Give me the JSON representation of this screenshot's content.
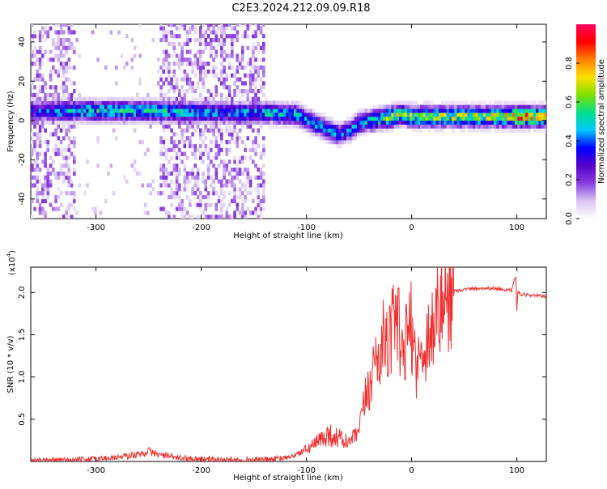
{
  "title": "C2E3.2024.212.09.09.R18",
  "chart_data": [
    {
      "type": "heatmap",
      "xlabel": "Height of straight line (km)",
      "ylabel": "Frequency (Hz)",
      "xlim": [
        -362,
        128
      ],
      "ylim": [
        -50,
        49
      ],
      "xticks": [
        -300,
        -200,
        -100,
        0,
        100
      ],
      "yticks": [
        -40,
        -20,
        0,
        20,
        40
      ],
      "ytick_labels": [
        "-40",
        "-20",
        "0",
        "20",
        "40"
      ],
      "colorbar": {
        "label": "Normalized spectral amplitude",
        "range": [
          0,
          1
        ],
        "ticks": [
          0.0,
          0.2,
          0.4,
          0.6,
          0.8
        ],
        "tick_labels": [
          "0.0",
          "0.2",
          "0.4",
          "0.6",
          "0.8"
        ],
        "colors": [
          "#ffffff",
          "#d9c4f2",
          "#8a3fe0",
          "#5500c8",
          "#0000ff",
          "#00c8ff",
          "#00e08c",
          "#7fe000",
          "#ffe000",
          "#ff8000",
          "#ff0000",
          "#ff0060"
        ]
      },
      "ridge": {
        "x": [
          -355,
          -330,
          -300,
          -260,
          -220,
          -180,
          -140,
          -110,
          -95,
          -80,
          -70,
          -60,
          -50,
          -40,
          -30,
          -20,
          -10,
          0,
          20,
          50,
          80,
          100,
          128
        ],
        "freq": [
          4,
          4,
          4,
          4,
          3.5,
          3,
          3,
          2,
          -2,
          -6,
          -8,
          -6,
          -2,
          -1,
          0,
          1,
          2,
          1,
          1,
          1,
          1,
          1,
          1
        ],
        "amp": [
          0.35,
          0.45,
          0.5,
          0.5,
          0.45,
          0.4,
          0.45,
          0.45,
          0.45,
          0.45,
          0.4,
          0.4,
          0.45,
          0.5,
          0.55,
          0.65,
          0.6,
          0.6,
          0.6,
          0.62,
          0.65,
          0.8,
          0.7
        ]
      }
    },
    {
      "type": "line",
      "xlabel": "Height of straight line (km)",
      "ylabel": "SNR (10 * v/v)",
      "scale_label_base": "(x10",
      "scale_label_exp": "4",
      "scale_label_close": ")",
      "xlim": [
        -362,
        128
      ],
      "ylim": [
        0,
        2.3
      ],
      "xticks": [
        -300,
        -200,
        -100,
        0,
        100
      ],
      "yticks": [
        0.5,
        1.0,
        1.5,
        2.0
      ],
      "ytick_labels": [
        "0.5",
        "1.0",
        "1.5",
        "2.0"
      ],
      "color": "#f03030",
      "series": [
        {
          "x": [
            -362,
            -340,
            -320,
            -300,
            -280,
            -260,
            -250,
            -240,
            -220,
            -200,
            -180,
            -160,
            -140,
            -120,
            -110,
            -100,
            -90,
            -80,
            -70,
            -60,
            -50,
            -45,
            -40,
            -35,
            -30,
            -25,
            -20,
            -18,
            -15,
            -12,
            -10,
            -5,
            0,
            5,
            10,
            20,
            30,
            40,
            60,
            80,
            95,
            99,
            100,
            101,
            105,
            115,
            128
          ],
          "values": [
            0.01,
            0.01,
            0.02,
            0.03,
            0.05,
            0.08,
            0.12,
            0.08,
            0.04,
            0.03,
            0.02,
            0.02,
            0.02,
            0.04,
            0.08,
            0.14,
            0.22,
            0.32,
            0.28,
            0.22,
            0.35,
            0.7,
            0.9,
            1.2,
            1.3,
            1.5,
            1.35,
            2.3,
            1.4,
            1.6,
            1.1,
            1.45,
            1.6,
            1.1,
            1.3,
            1.6,
            1.9,
            2.02,
            2.05,
            2.05,
            2.02,
            2.2,
            1.8,
            2.0,
            1.97,
            1.97,
            1.95
          ]
        }
      ]
    }
  ]
}
